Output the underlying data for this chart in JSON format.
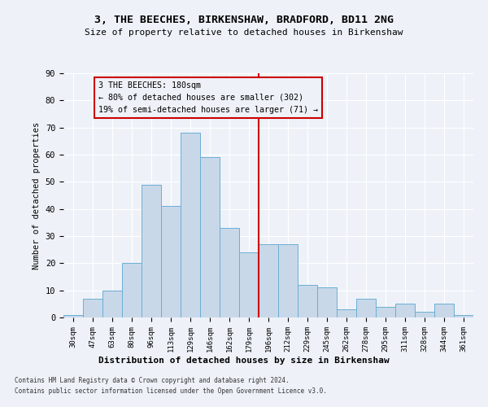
{
  "title1": "3, THE BEECHES, BIRKENSHAW, BRADFORD, BD11 2NG",
  "title2": "Size of property relative to detached houses in Birkenshaw",
  "xlabel": "Distribution of detached houses by size in Birkenshaw",
  "ylabel": "Number of detached properties",
  "categories": [
    "30sqm",
    "47sqm",
    "63sqm",
    "80sqm",
    "96sqm",
    "113sqm",
    "129sqm",
    "146sqm",
    "162sqm",
    "179sqm",
    "196sqm",
    "212sqm",
    "229sqm",
    "245sqm",
    "262sqm",
    "278sqm",
    "295sqm",
    "311sqm",
    "328sqm",
    "344sqm",
    "361sqm"
  ],
  "values": [
    1,
    7,
    10,
    20,
    49,
    41,
    68,
    59,
    33,
    24,
    27,
    27,
    12,
    11,
    3,
    7,
    4,
    5,
    2,
    5,
    1
  ],
  "bar_color": "#c8d8e8",
  "bar_edgecolor": "#6baed6",
  "vline_x_idx": 9.5,
  "vline_color": "#cc0000",
  "annotation_text": "3 THE BEECHES: 180sqm\n← 80% of detached houses are smaller (302)\n19% of semi-detached houses are larger (71) →",
  "annotation_box_color": "#cc0000",
  "background_color": "#eef2f8",
  "grid_color": "#ffffff",
  "ylim": [
    0,
    90
  ],
  "yticks": [
    0,
    10,
    20,
    30,
    40,
    50,
    60,
    70,
    80,
    90
  ],
  "footer1": "Contains HM Land Registry data © Crown copyright and database right 2024.",
  "footer2": "Contains public sector information licensed under the Open Government Licence v3.0."
}
